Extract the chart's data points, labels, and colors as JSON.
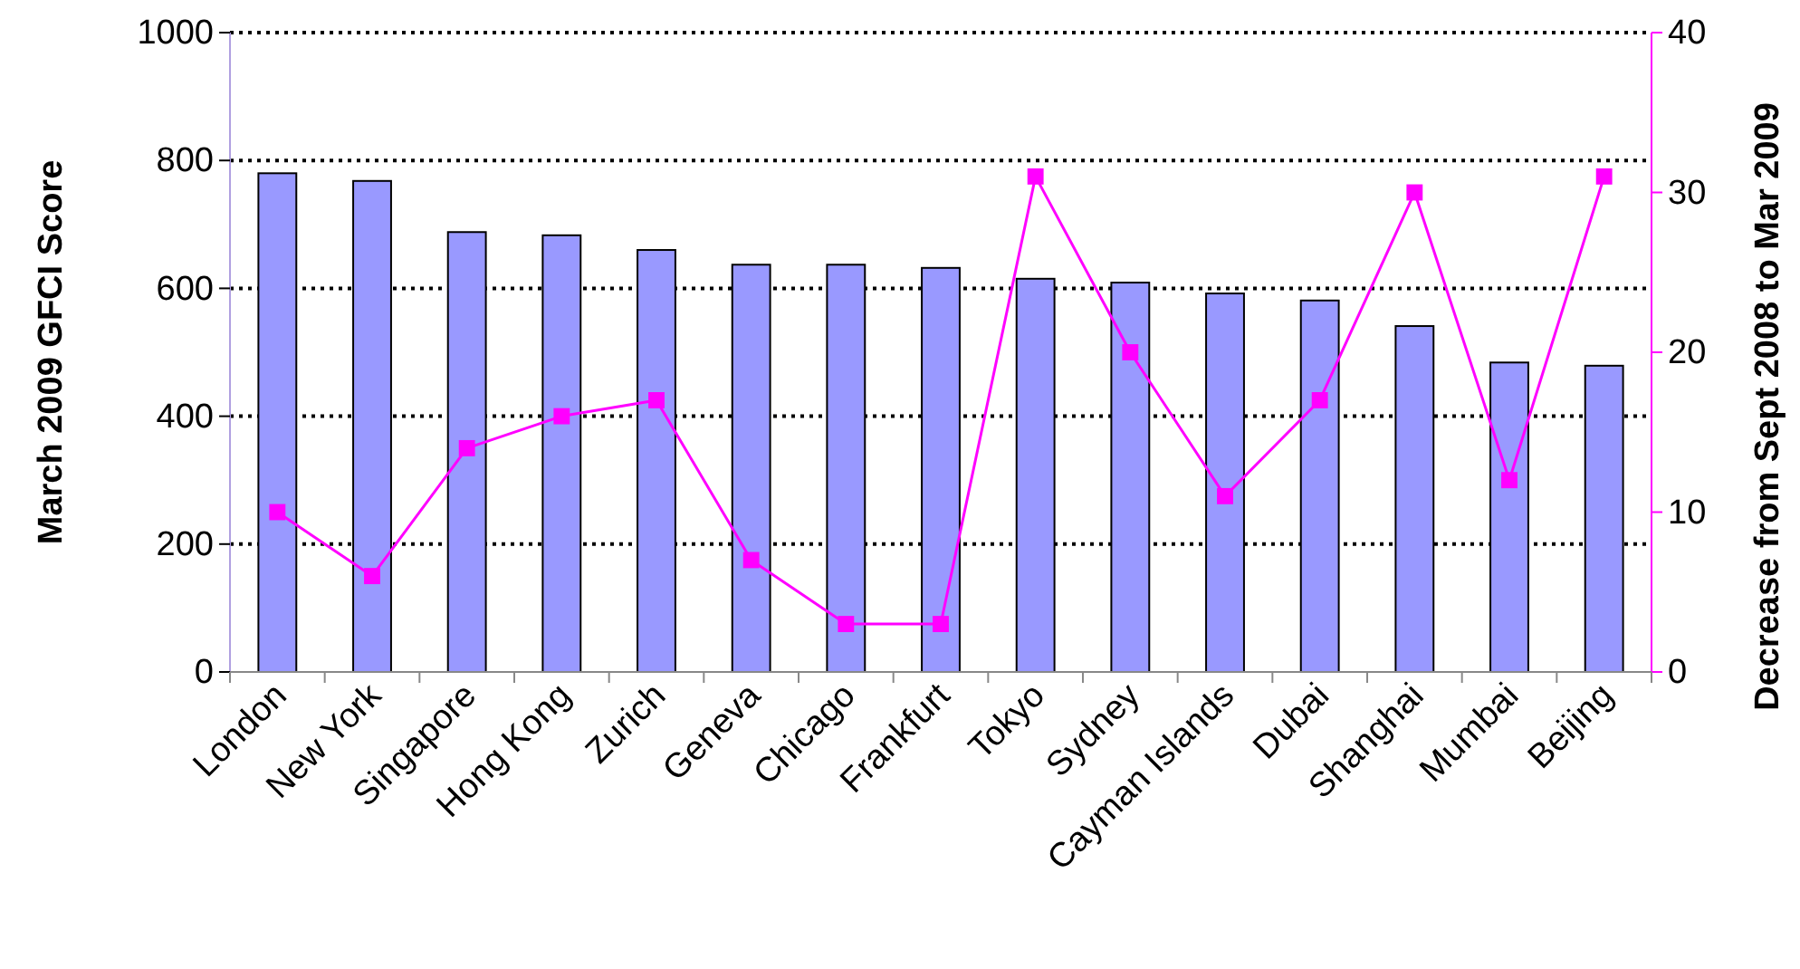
{
  "chart_data": {
    "type": "bar",
    "ylabel": "March 2009 GFCI Score",
    "y2label": "Decrease from Sept 2008 to Mar 2009",
    "categories": [
      "London",
      "New York",
      "Singapore",
      "Hong Kong",
      "Zurich",
      "Geneva",
      "Chicago",
      "Frankfurt",
      "Tokyo",
      "Sydney",
      "Cayman Islands",
      "Dubai",
      "Shanghai",
      "Mumbai",
      "Beijing"
    ],
    "series": [
      {
        "color": "#9999ff",
        "values": [
          780,
          768,
          688,
          683,
          660,
          637,
          637,
          632,
          615,
          609,
          592,
          581,
          541,
          484,
          479
        ]
      },
      {
        "type": "line",
        "axis": "y2",
        "color": "#ff00ff",
        "values": [
          10,
          6,
          14,
          16,
          17,
          7,
          3,
          3,
          31,
          20,
          11,
          17,
          30,
          12,
          31
        ]
      }
    ],
    "ylim": [
      0,
      1000
    ],
    "yticks": [
      0,
      200,
      400,
      600,
      800,
      1000
    ],
    "y2lim": [
      0,
      40
    ],
    "y2ticks": [
      0,
      10,
      20,
      30,
      40
    ],
    "grid": "y",
    "marker": "square",
    "line_style": "solid"
  }
}
